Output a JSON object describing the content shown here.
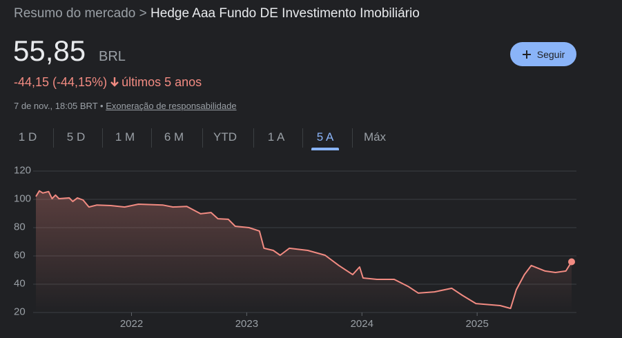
{
  "header": {
    "breadcrumb": "Resumo do mercado",
    "separator": ">",
    "title": "Hedge Aaa Fundo DE Investimento Imobiliário"
  },
  "quote": {
    "price": "55,85",
    "currency": "BRL",
    "change": "-44,15 (-44,15%)",
    "period": "últimos 5 anos",
    "timestamp": "7 de nov., 18:05 BRT",
    "separator": "•",
    "disclaimer": "Exoneração de responsabilidade"
  },
  "follow_button": "Seguir",
  "tabs": [
    "1 D",
    "5 D",
    "1 M",
    "6 M",
    "YTD",
    "1 A",
    "5 A",
    "Máx"
  ],
  "selected_tab": 6,
  "chart_data": {
    "type": "line",
    "color": "#f28b82",
    "grid": true,
    "x": [
      2021.17,
      2021.2,
      2021.23,
      2021.28,
      2021.31,
      2021.34,
      2021.37,
      2021.46,
      2021.49,
      2021.53,
      2021.58,
      2021.63,
      2021.7,
      2021.82,
      2021.94,
      2022.06,
      2022.27,
      2022.36,
      2022.48,
      2022.6,
      2022.69,
      2022.75,
      2022.84,
      2022.9,
      2023.02,
      2023.11,
      2023.15,
      2023.23,
      2023.29,
      2023.37,
      2023.53,
      2023.68,
      2023.8,
      2023.92,
      2023.98,
      2024.01,
      2024.13,
      2024.28,
      2024.4,
      2024.49,
      2024.63,
      2024.78,
      2024.87,
      2024.99,
      2025.2,
      2025.29,
      2025.34,
      2025.41,
      2025.47,
      2025.59,
      2025.68,
      2025.77,
      2025.82
    ],
    "values": [
      102,
      106,
      104.5,
      105.5,
      100.5,
      103,
      100.5,
      101,
      98.5,
      101,
      99.5,
      94.6,
      96,
      95.6,
      94.6,
      96.6,
      96,
      94.6,
      95,
      89.8,
      90.7,
      86.3,
      85.9,
      81,
      80,
      77.6,
      65.4,
      63.9,
      60.5,
      65.4,
      63.9,
      60.5,
      53.2,
      46.8,
      52.2,
      44.4,
      43.4,
      43.4,
      38.5,
      33.7,
      34.6,
      37.1,
      32.2,
      26.3,
      24.9,
      22.9,
      36.1,
      46.8,
      53.2,
      49.3,
      48.3,
      49.3,
      55.85
    ],
    "xlim": [
      2021.17,
      2025.82
    ],
    "ylim": [
      20,
      120
    ],
    "xticks": [
      2022,
      2023,
      2024,
      2025
    ],
    "yticks": [
      20,
      40,
      60,
      80,
      100,
      120
    ]
  }
}
